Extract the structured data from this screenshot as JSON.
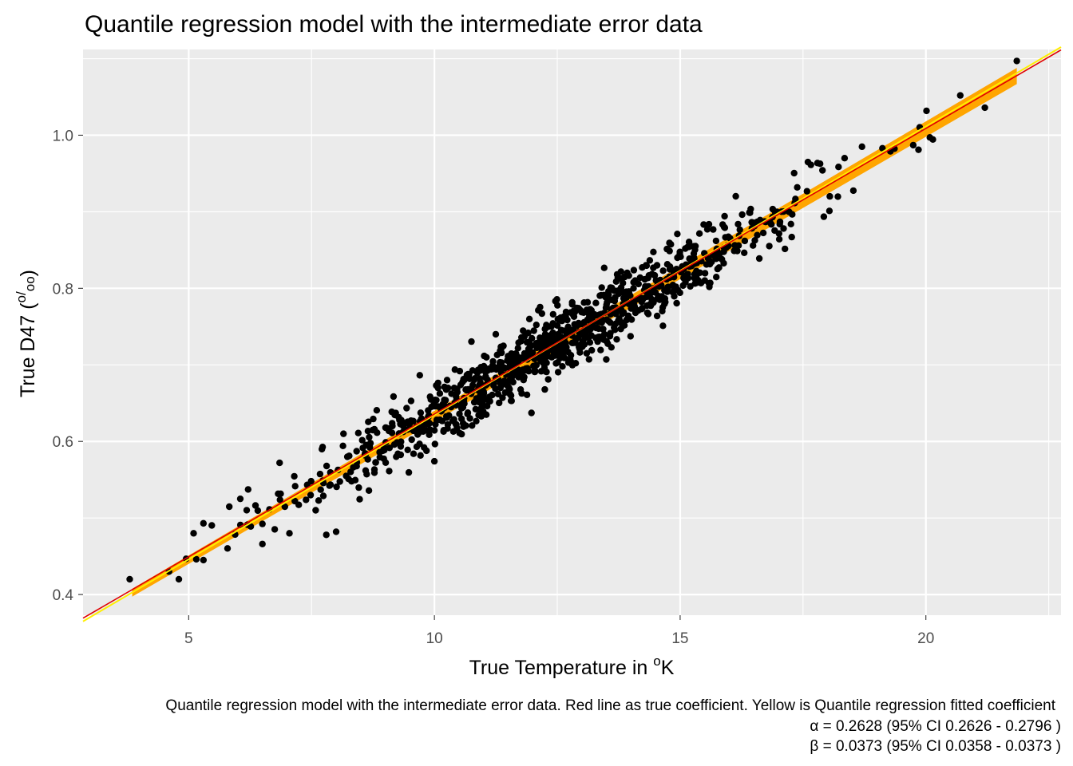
{
  "chart_data": {
    "type": "scatter",
    "title": "Quantile regression model with the intermediate error data",
    "xlabel": {
      "main": "True Temperature in ",
      "sup": "o",
      "tail": "K"
    },
    "ylabel": {
      "main": "True D47 (",
      "sup": "o",
      "sub": "oo",
      "tail": ")"
    },
    "xlim": [
      2.85,
      22.75
    ],
    "ylim": [
      0.373,
      1.112
    ],
    "x_ticks": [
      5,
      10,
      15,
      20
    ],
    "x_tick_labels": [
      "5",
      "10",
      "15",
      "20"
    ],
    "y_ticks": [
      0.4,
      0.6,
      0.8,
      1.0
    ],
    "y_tick_labels": [
      "0.4",
      "0.6",
      "0.8",
      "1.0"
    ],
    "grid": true,
    "panel_background": "#ebebeb",
    "grid_color": "#ffffff",
    "point_color": "#000000",
    "lines": [
      {
        "role": "true coefficient",
        "color": "#e00000",
        "intercept": 0.2628,
        "slope": 0.0373
      },
      {
        "role": "quantile regression fit",
        "color": "#ffee00",
        "intercept": 0.2575,
        "slope": 0.0377
      }
    ],
    "ribbon": {
      "color": "#ffa500",
      "x_range": [
        3.85,
        21.85
      ],
      "lower": {
        "intercept": 0.254,
        "slope": 0.0372
      },
      "upper": {
        "intercept": 0.262,
        "slope": 0.0378
      }
    },
    "points_summary": {
      "n": 1000,
      "x_mean": 12.5,
      "x_sd": 2.6,
      "x_range": [
        3.8,
        21.9
      ],
      "noise_sd": 0.022
    },
    "highlight_points": [
      {
        "x": 21.85,
        "y": 1.097
      },
      {
        "x": 21.2,
        "y": 1.036
      },
      {
        "x": 19.85,
        "y": 0.981
      },
      {
        "x": 18.7,
        "y": 0.985
      },
      {
        "x": 17.6,
        "y": 0.965
      },
      {
        "x": 3.8,
        "y": 0.42
      },
      {
        "x": 4.8,
        "y": 0.42
      },
      {
        "x": 4.6,
        "y": 0.43
      },
      {
        "x": 5.3,
        "y": 0.445
      },
      {
        "x": 5.1,
        "y": 0.48
      },
      {
        "x": 5.3,
        "y": 0.493
      },
      {
        "x": 6.05,
        "y": 0.525
      },
      {
        "x": 7.05,
        "y": 0.48
      },
      {
        "x": 7.8,
        "y": 0.478
      },
      {
        "x": 8.0,
        "y": 0.482
      },
      {
        "x": 6.85,
        "y": 0.572
      },
      {
        "x": 6.5,
        "y": 0.466
      },
      {
        "x": 8.15,
        "y": 0.61
      }
    ]
  },
  "caption": {
    "line1": "Quantile regression model with the intermediate error data. Red line as true coefficient. Yellow is Quantile regression fitted coefficient",
    "line2": "α = 0.2628 (95% CI 0.2626 - 0.2796 )",
    "line3": "β = 0.0373 (95% CI 0.0358 - 0.0373 )"
  }
}
